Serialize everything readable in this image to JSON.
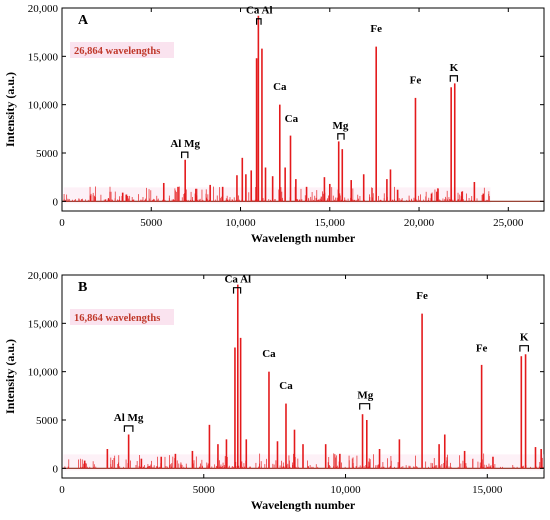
{
  "chart_data": [
    {
      "type": "line",
      "panel_label": "A",
      "annotation": "26,864 wavelengths",
      "xlabel": "Wavelength number",
      "ylabel": "Intensity  (a.u.)",
      "xlim": [
        0,
        27000
      ],
      "ylim": [
        -1000,
        20000
      ],
      "x_ticks": [
        0,
        5000,
        10000,
        15000,
        20000,
        25000
      ],
      "x_tick_labels": [
        "0",
        "5000",
        "10,000",
        "15,000",
        "20,000",
        "25,000"
      ],
      "y_ticks": [
        0,
        5000,
        10000,
        15000,
        20000
      ],
      "y_tick_labels": [
        "0",
        "5000",
        "10,000",
        "15,000",
        "20,000"
      ],
      "line_color": "#e41a1c",
      "signal_extent": [
        100,
        24000
      ],
      "peaks": [
        {
          "x": 1600,
          "y": 600
        },
        {
          "x": 3400,
          "y": 900
        },
        {
          "x": 3600,
          "y": 700
        },
        {
          "x": 5700,
          "y": 1900
        },
        {
          "x": 6500,
          "y": 1500
        },
        {
          "x": 6900,
          "y": 4300
        },
        {
          "x": 7500,
          "y": 1300
        },
        {
          "x": 8300,
          "y": 1700
        },
        {
          "x": 9000,
          "y": 1500
        },
        {
          "x": 9800,
          "y": 2700
        },
        {
          "x": 10100,
          "y": 4500
        },
        {
          "x": 10300,
          "y": 2800
        },
        {
          "x": 10600,
          "y": 3200
        },
        {
          "x": 10900,
          "y": 14800
        },
        {
          "x": 11000,
          "y": 19200
        },
        {
          "x": 11200,
          "y": 15800
        },
        {
          "x": 11400,
          "y": 3500
        },
        {
          "x": 11800,
          "y": 2600
        },
        {
          "x": 12200,
          "y": 10000
        },
        {
          "x": 12500,
          "y": 3500
        },
        {
          "x": 12800,
          "y": 6800
        },
        {
          "x": 13100,
          "y": 2300
        },
        {
          "x": 13700,
          "y": 1500
        },
        {
          "x": 14700,
          "y": 2500
        },
        {
          "x": 15000,
          "y": 1800
        },
        {
          "x": 15500,
          "y": 6200
        },
        {
          "x": 15700,
          "y": 5400
        },
        {
          "x": 16200,
          "y": 2200
        },
        {
          "x": 16900,
          "y": 2800
        },
        {
          "x": 17600,
          "y": 16000
        },
        {
          "x": 18200,
          "y": 2300
        },
        {
          "x": 18400,
          "y": 3300
        },
        {
          "x": 18800,
          "y": 1200
        },
        {
          "x": 19800,
          "y": 10700
        },
        {
          "x": 20700,
          "y": 800
        },
        {
          "x": 21000,
          "y": 1000
        },
        {
          "x": 21800,
          "y": 11800
        },
        {
          "x": 22000,
          "y": 12200
        },
        {
          "x": 22400,
          "y": 1000
        },
        {
          "x": 23100,
          "y": 2000
        },
        {
          "x": 23600,
          "y": 800
        }
      ],
      "element_labels": [
        {
          "text": "Al Mg",
          "x": 6900,
          "y": 5400,
          "bracket": [
            6700,
            7050
          ]
        },
        {
          "text": "Ca Al",
          "x": 11050,
          "y": 19200,
          "bracket": [
            10900,
            11150
          ]
        },
        {
          "text": "Ca",
          "x": 12200,
          "y": 11300
        },
        {
          "text": "Ca",
          "x": 12850,
          "y": 8000
        },
        {
          "text": "Mg",
          "x": 15600,
          "y": 7300,
          "bracket": [
            15450,
            15800
          ]
        },
        {
          "text": "Fe",
          "x": 17600,
          "y": 17300
        },
        {
          "text": "Fe",
          "x": 19800,
          "y": 12000
        },
        {
          "text": "K",
          "x": 21950,
          "y": 13300,
          "bracket": [
            21750,
            22150
          ]
        }
      ]
    },
    {
      "type": "line",
      "panel_label": "B",
      "annotation": "16,864 wavelengths",
      "xlabel": "Wavelength number",
      "ylabel": "Intensity  (a.u.)",
      "xlim": [
        0,
        17000
      ],
      "ylim": [
        -1000,
        20000
      ],
      "x_ticks": [
        0,
        5000,
        10000,
        15000
      ],
      "x_tick_labels": [
        "0",
        "5000",
        "10,000",
        "15,000"
      ],
      "y_ticks": [
        0,
        5000,
        10000,
        15000,
        20000
      ],
      "y_tick_labels": [
        "0",
        "5000",
        "10,000",
        "15,000",
        "20,000"
      ],
      "line_color": "#e41a1c",
      "signal_extent": [
        50,
        17000
      ],
      "peaks": [
        {
          "x": 800,
          "y": 800
        },
        {
          "x": 1600,
          "y": 2000
        },
        {
          "x": 2350,
          "y": 3500
        },
        {
          "x": 2800,
          "y": 1000
        },
        {
          "x": 3500,
          "y": 1200
        },
        {
          "x": 4000,
          "y": 1500
        },
        {
          "x": 4600,
          "y": 1800
        },
        {
          "x": 5200,
          "y": 4500
        },
        {
          "x": 5500,
          "y": 2500
        },
        {
          "x": 5800,
          "y": 3000
        },
        {
          "x": 6100,
          "y": 12500
        },
        {
          "x": 6200,
          "y": 19000
        },
        {
          "x": 6300,
          "y": 13500
        },
        {
          "x": 6500,
          "y": 3000
        },
        {
          "x": 7300,
          "y": 10000
        },
        {
          "x": 7600,
          "y": 2800
        },
        {
          "x": 7900,
          "y": 6700
        },
        {
          "x": 8200,
          "y": 4000
        },
        {
          "x": 8500,
          "y": 2500
        },
        {
          "x": 9300,
          "y": 2500
        },
        {
          "x": 9800,
          "y": 1500
        },
        {
          "x": 10600,
          "y": 5600
        },
        {
          "x": 10750,
          "y": 5000
        },
        {
          "x": 11200,
          "y": 2000
        },
        {
          "x": 11900,
          "y": 3000
        },
        {
          "x": 12700,
          "y": 16000
        },
        {
          "x": 13300,
          "y": 2500
        },
        {
          "x": 13500,
          "y": 3500
        },
        {
          "x": 14200,
          "y": 1800
        },
        {
          "x": 14800,
          "y": 10700
        },
        {
          "x": 15200,
          "y": 1200
        },
        {
          "x": 16200,
          "y": 11600
        },
        {
          "x": 16350,
          "y": 11800
        },
        {
          "x": 16700,
          "y": 2200
        },
        {
          "x": 16900,
          "y": 2000
        }
      ],
      "element_labels": [
        {
          "text": "Al Mg",
          "x": 2350,
          "y": 4700,
          "bracket": [
            2200,
            2500
          ]
        },
        {
          "text": "Ca Al",
          "x": 6200,
          "y": 19000,
          "bracket": [
            6050,
            6300
          ]
        },
        {
          "text": "Ca",
          "x": 7300,
          "y": 11300
        },
        {
          "text": "Ca",
          "x": 7900,
          "y": 8000
        },
        {
          "text": "Mg",
          "x": 10700,
          "y": 7000,
          "bracket": [
            10500,
            10850
          ]
        },
        {
          "text": "Fe",
          "x": 12700,
          "y": 17300
        },
        {
          "text": "Fe",
          "x": 14800,
          "y": 11900
        },
        {
          "text": "K",
          "x": 16300,
          "y": 13000,
          "bracket": [
            16150,
            16450
          ]
        }
      ]
    }
  ]
}
